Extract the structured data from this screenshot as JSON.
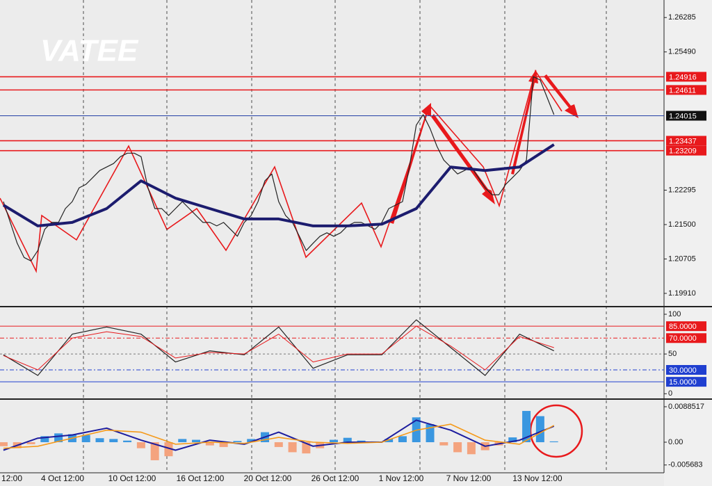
{
  "chart_data": [
    {
      "type": "line",
      "watermark": "VATEE",
      "xlim": [
        -0.5,
        96
      ],
      "ylim": [
        1.1962,
        1.2669
      ],
      "yticks": [
        {
          "value": 1.1991,
          "label": "1.19910"
        },
        1.20705,
        {
          "value": 1.215,
          "label": "1.21500"
        },
        1.22295,
        {
          "value": 1.2549,
          "label": "1.25490"
        },
        1.26285
      ],
      "levels": [
        {
          "value": 1.24916,
          "color": "#e8191c"
        },
        {
          "value": 1.24611,
          "color": "#e8191c"
        },
        {
          "value": 1.24015,
          "color": "#111111"
        },
        {
          "value": 1.23437,
          "color": "#e8191c"
        },
        {
          "value": 1.23209,
          "color": "#e8191c"
        }
      ],
      "series": [
        {
          "color": "#222222",
          "width": 1.2,
          "values": [
            1.2203,
            1.2155,
            1.2107,
            1.2074,
            1.2066,
            1.209,
            1.2139,
            1.2155,
            1.2155,
            1.2187,
            1.2203,
            1.2235,
            1.2243,
            1.2259,
            1.2275,
            1.2283,
            1.2291,
            1.2307,
            1.2315,
            1.2315,
            1.2307,
            1.2235,
            1.2187,
            1.2187,
            1.2171,
            1.2187,
            1.2203,
            1.2187,
            1.2171,
            1.2155,
            1.2155,
            1.2147,
            1.2155,
            1.2139,
            1.2123,
            1.2155,
            1.2171,
            1.2203,
            1.2251,
            1.2267,
            1.2203,
            1.2171,
            1.2155,
            1.2123,
            1.209,
            1.2107,
            1.2123,
            1.2131,
            1.2123,
            1.2131,
            1.2147,
            1.2155,
            1.2155,
            1.2147,
            1.2139,
            1.2155,
            1.2187,
            1.2195,
            1.2203,
            1.2283,
            1.238,
            1.2404,
            1.2372,
            1.2331,
            1.2299,
            1.2283,
            1.2267,
            1.2275,
            1.2283,
            1.2259,
            1.2235,
            1.2219,
            1.2219,
            1.2243,
            1.2259,
            1.2275,
            1.2299,
            1.2492,
            1.2484,
            1.2444,
            1.2404
          ]
        },
        {
          "color": "#1c1c6e",
          "width": 4,
          "x": [
            0,
            5,
            10,
            15,
            20,
            25,
            30,
            35,
            40,
            45,
            50,
            55,
            60,
            65,
            70,
            75,
            80
          ],
          "values": [
            1.2195,
            1.2147,
            1.2155,
            1.2187,
            1.2251,
            1.2211,
            1.2187,
            1.2163,
            1.2163,
            1.2147,
            1.2147,
            1.2151,
            1.2187,
            1.2283,
            1.2275,
            1.2283,
            1.2335
          ]
        }
      ]
    },
    {
      "type": "line",
      "xlim": [
        -0.5,
        96
      ],
      "ylim": [
        -5,
        107
      ],
      "yticks": [
        0,
        50,
        100
      ],
      "levels": [
        {
          "value": 85,
          "label": "85.0000",
          "color": "#e8191c",
          "dash": "none"
        },
        {
          "value": 70,
          "label": "70.0000",
          "color": "#e8191c",
          "dash": "6 3 2 3"
        },
        {
          "value": 30,
          "label": "30.0000",
          "color": "#1f3fd0",
          "dash": "6 3 2 3"
        },
        {
          "value": 15,
          "label": "15.0000",
          "color": "#1f3fd0",
          "dash": "none"
        }
      ],
      "series": [
        {
          "color": "#222222",
          "width": 1.2,
          "x": [
            0,
            5,
            10,
            15,
            20,
            25,
            30,
            35,
            40,
            45,
            50,
            55,
            60,
            65,
            70,
            75,
            80
          ],
          "values": [
            49,
            23,
            75,
            84,
            75,
            40,
            54,
            49,
            84,
            32,
            49,
            49,
            93,
            58,
            23,
            75,
            54
          ]
        },
        {
          "color": "#e8191c",
          "width": 1,
          "x": [
            0,
            5,
            10,
            15,
            20,
            25,
            30,
            35,
            40,
            45,
            50,
            55,
            60,
            65,
            70,
            75,
            80
          ],
          "values": [
            48,
            30,
            70,
            78,
            72,
            45,
            52,
            50,
            75,
            40,
            50,
            50,
            85,
            60,
            30,
            72,
            58
          ]
        }
      ]
    },
    {
      "type": "macd",
      "xlim": [
        -0.5,
        96
      ],
      "ylim": [
        -0.00763,
        0.01041
      ],
      "yticks": [
        -0.005683,
        {
          "value": 0,
          "label": "0.00"
        },
        0.0088517
      ],
      "xticks": [
        {
          "value": 1.5,
          "label": "12:00"
        },
        {
          "value": 8.6,
          "label": "4 Oct 12:00"
        },
        {
          "value": 18.7,
          "label": "10 Oct 12:00"
        },
        {
          "value": 28.6,
          "label": "16 Oct 12:00"
        },
        {
          "value": 38.4,
          "label": "20 Oct 12:00"
        },
        {
          "value": 48.2,
          "label": "26 Oct 12:00"
        },
        {
          "value": 57.8,
          "label": "1 Nov 12:00"
        },
        {
          "value": 67.6,
          "label": "7 Nov 12:00"
        },
        {
          "value": 77.6,
          "label": "13 Nov 12:00"
        }
      ],
      "up_color": "#3a97e0",
      "down_color": "#f4a37e",
      "histogram": {
        "x": [
          0,
          2,
          4,
          6,
          8,
          10,
          12,
          14,
          16,
          18,
          20,
          22,
          24,
          26,
          28,
          30,
          32,
          34,
          36,
          38,
          40,
          42,
          44,
          46,
          48,
          50,
          52,
          54,
          56,
          58,
          60,
          62,
          64,
          66,
          68,
          70,
          72,
          74,
          76,
          78,
          80
        ],
        "values": [
          -0.001,
          -0.0015,
          -0.0005,
          0.0015,
          0.0022,
          0.002,
          0.0018,
          0.001,
          0.0008,
          0.0004,
          -0.0015,
          -0.0045,
          -0.0035,
          0.0008,
          0.0006,
          -0.0008,
          -0.0012,
          0.0003,
          0.0008,
          0.0025,
          -0.0012,
          -0.0025,
          -0.0028,
          -0.0015,
          0.0006,
          0.0011,
          0.0004,
          0.0002,
          0.0008,
          0.0015,
          0.0062,
          0.0045,
          -0.0008,
          -0.0025,
          -0.003,
          -0.002,
          -0.0008,
          0.0012,
          0.0078,
          0.0065,
          0.0002
        ]
      },
      "series": [
        {
          "color": "#1c1c9e",
          "width": 2,
          "x": [
            0,
            5,
            10,
            15,
            20,
            25,
            30,
            35,
            40,
            45,
            50,
            55,
            60,
            65,
            70,
            75,
            80
          ],
          "values": [
            -0.002,
            0.001,
            0.0018,
            0.0035,
            0.0005,
            -0.002,
            0.0005,
            -0.0005,
            0.0025,
            -0.001,
            0,
            0,
            0.0055,
            0.003,
            -0.001,
            0.0005,
            0.004
          ]
        },
        {
          "color": "#f59a1a",
          "width": 1.6,
          "x": [
            0,
            5,
            10,
            15,
            20,
            25,
            30,
            35,
            40,
            45,
            50,
            55,
            60,
            65,
            70,
            75,
            80
          ],
          "values": [
            -0.0015,
            -0.001,
            0.001,
            0.003,
            0.0025,
            -0.0005,
            0,
            -0.0003,
            0.0012,
            0,
            -0.0003,
            0,
            0.003,
            0.0045,
            0.0005,
            -0.0005,
            0.0042
          ]
        }
      ]
    }
  ]
}
